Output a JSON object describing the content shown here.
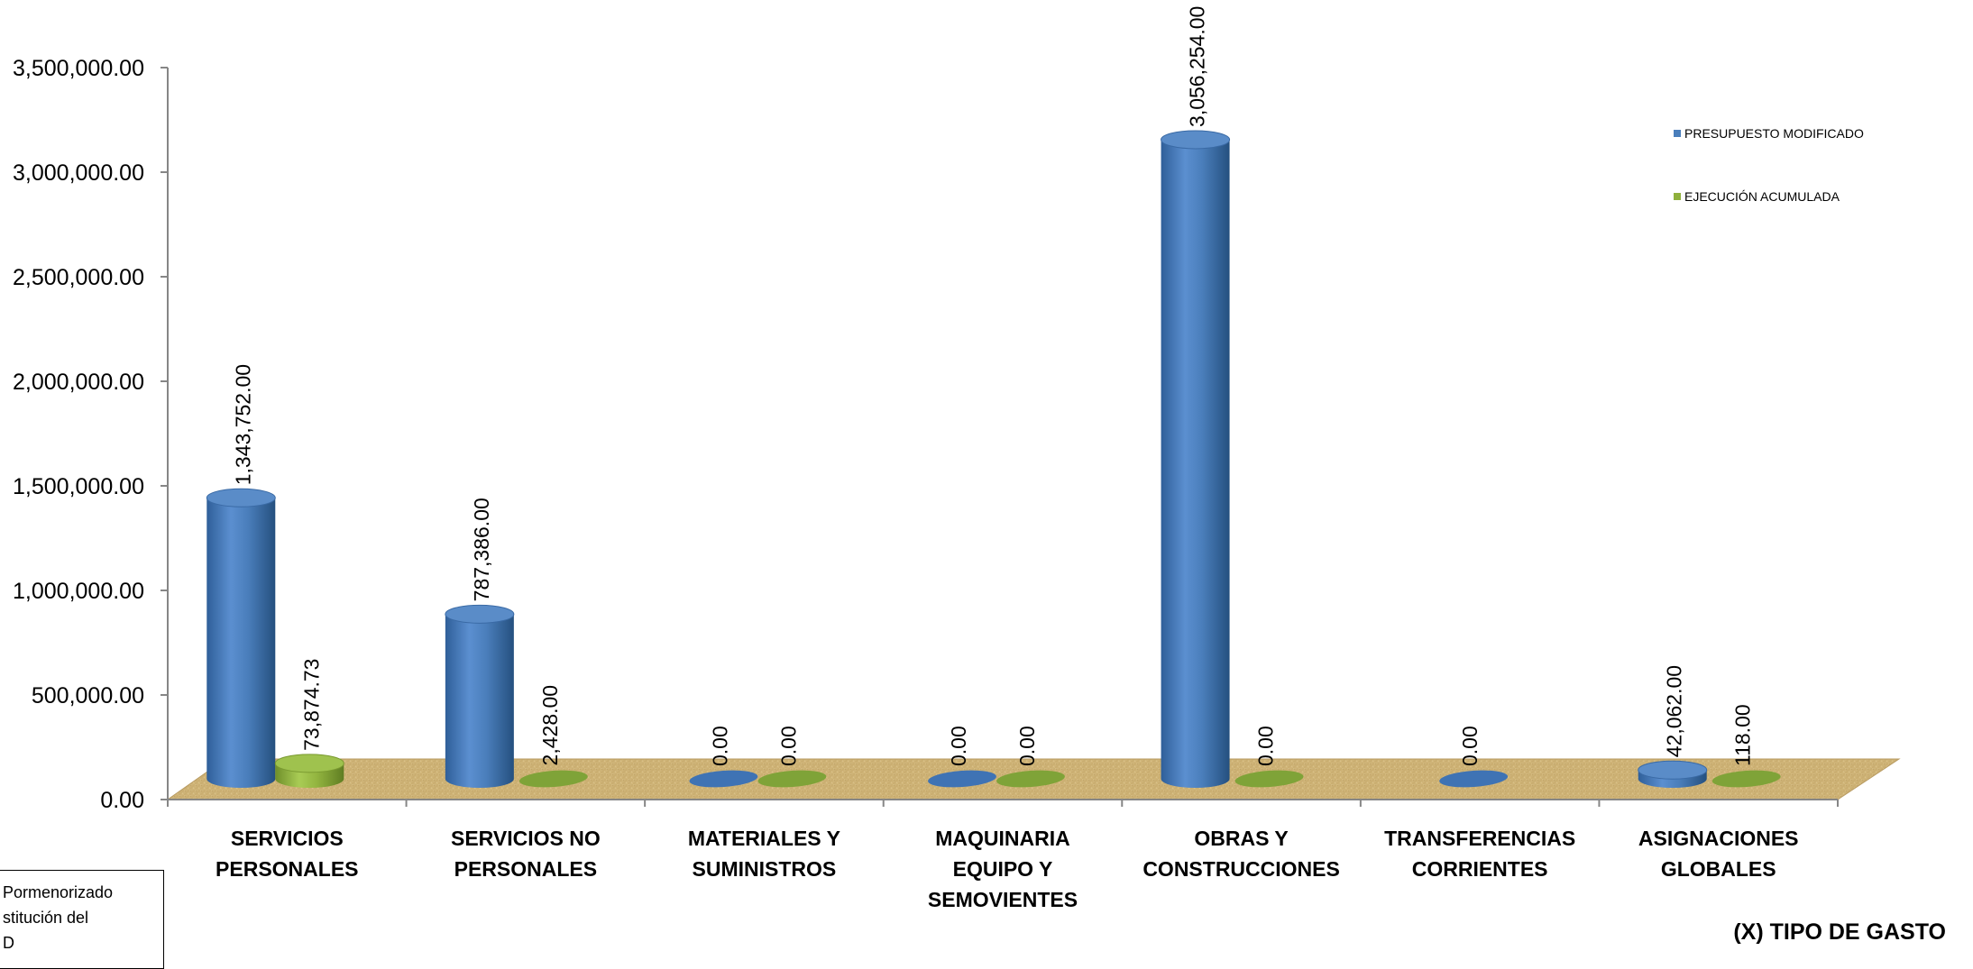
{
  "chart_data": {
    "type": "bar",
    "title": "",
    "xlabel": "(X) TIPO DE GASTO",
    "ylabel": "",
    "ylim": [
      0,
      3500000
    ],
    "yticks": [
      "0.00",
      "500,000.00",
      "1,000,000.00",
      "1,500,000.00",
      "2,000,000.00",
      "2,500,000.00",
      "3,000,000.00",
      "3,500,000.00"
    ],
    "categories": [
      [
        "SERVICIOS",
        "PERSONALES"
      ],
      [
        "SERVICIOS NO",
        "PERSONALES"
      ],
      [
        "MATERIALES Y",
        "SUMINISTROS"
      ],
      [
        "MAQUINARIA",
        "EQUIPO Y",
        "SEMOVIENTES"
      ],
      [
        "OBRAS Y",
        "CONSTRUCCIONES"
      ],
      [
        "TRANSFERENCIAS",
        "CORRIENTES"
      ],
      [
        "ASIGNACIONES",
        "GLOBALES"
      ]
    ],
    "series": [
      {
        "name": "PRESUPUESTO MODIFICADO",
        "color": "#4a7ebb",
        "values": [
          1343752,
          787386,
          0,
          0,
          3056254,
          0,
          42062
        ],
        "labels": [
          "1,343,752.00",
          "787,386.00",
          "0.00",
          "0.00",
          "3,056,254.00",
          "0.00",
          "42,062.00"
        ]
      },
      {
        "name": "EJECUCIÓN ACUMULADA",
        "color": "#8fb03c",
        "values": [
          73874.73,
          2428,
          0,
          0,
          0,
          null,
          118
        ],
        "labels": [
          "73,874.73",
          "2,428.00",
          "0.00",
          "0.00",
          "0.00",
          "",
          "118.00"
        ]
      }
    ],
    "legend": "right",
    "grid": false
  },
  "note": {
    "lines": [
      "Pormenorizado",
      "stitución del",
      "D"
    ]
  }
}
